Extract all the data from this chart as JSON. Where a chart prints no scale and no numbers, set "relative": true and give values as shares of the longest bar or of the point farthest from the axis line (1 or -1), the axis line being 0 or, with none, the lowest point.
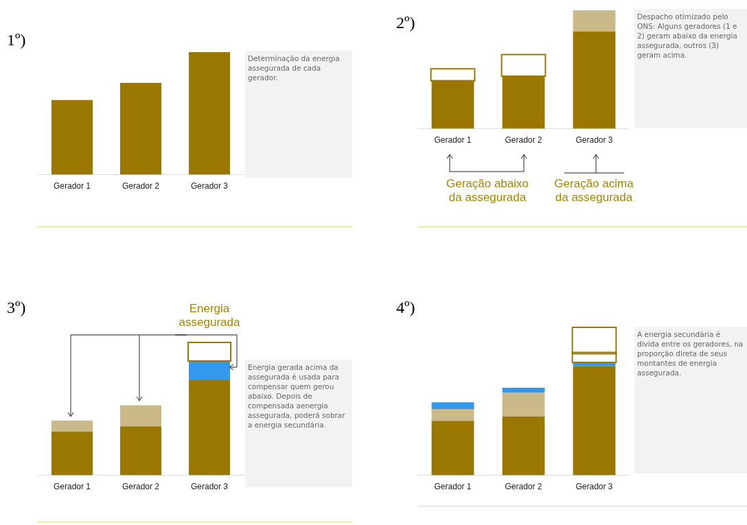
{
  "chart_data": [
    {
      "type": "bar",
      "title": "1º)",
      "categories": [
        "Gerador 1",
        "Gerador 2",
        "Gerador 3"
      ],
      "stacked": true,
      "relative": true,
      "grid": false,
      "series": [
        {
          "color": "#9a7800",
          "values": [
            0.61,
            0.75,
            1
          ]
        }
      ],
      "annotations": [
        "Determinação da energia assegurada de cada gerador."
      ]
    },
    {
      "type": "bar",
      "title": "2º)",
      "categories": [
        "Gerador 1",
        "Gerador 2",
        "Gerador 3"
      ],
      "stacked": true,
      "relative": true,
      "grid": false,
      "series": [
        {
          "color": "#9a7800",
          "values": [
            0.41,
            0.45,
            0.82
          ]
        },
        {
          "color": "#ffffff",
          "values": [
            0.09,
            0.17,
            null
          ]
        },
        {
          "color": "#ccb98a",
          "values": [
            null,
            null,
            0.18
          ]
        }
      ],
      "annotations": [
        "Despacho otimizado pelo ONS: Alguns geradores (1 e 2) geram abaixo da energia assegurada, outros (3) geram acima.",
        "Geração abaixo da assegurada",
        "Geração acima da assegurada"
      ]
    },
    {
      "type": "bar",
      "title": "3º)",
      "categories": [
        "Gerador 1",
        "Gerador 2",
        "Gerador 3"
      ],
      "stacked": true,
      "relative": true,
      "grid": false,
      "series": [
        {
          "color": "#9a7800",
          "values": [
            0.33,
            0.37,
            0.72
          ]
        },
        {
          "color": "#ccb98a",
          "values": [
            0.085,
            0.16,
            null
          ]
        },
        {
          "color": "#3399ee",
          "values": [
            null,
            null,
            0.15
          ]
        },
        {
          "color": "#ffffff",
          "values": [
            null,
            null,
            0.13
          ]
        }
      ],
      "annotations": [
        "Energia assegurada",
        "Energia gerada acima da assegurada é usada para compensar quem gerou abaixo. Depois de compensada aenergia assegurada, poderá sobrar a energia secundária."
      ]
    },
    {
      "type": "bar",
      "title": "4º)",
      "categories": [
        "Gerador 1",
        "Gerador 2",
        "Gerador 3"
      ],
      "stacked": true,
      "relative": true,
      "grid": false,
      "series": [
        {
          "color": "#9a7800",
          "values": [
            0.37,
            0.4,
            0.74
          ]
        },
        {
          "color": "#ccb98a",
          "values": [
            0.08,
            0.16,
            null
          ]
        },
        {
          "color": "#3399ee",
          "values": [
            0.045,
            0.035,
            0.03
          ]
        },
        {
          "color": "#ffffff",
          "values": [
            null,
            null,
            0.06
          ]
        },
        {
          "color": "#ffffff",
          "values": [
            null,
            null,
            0.17
          ]
        }
      ],
      "annotations": [
        "A energia secundária é divida entre os geradores, na proporção direta de seus montantes de energia assegurada."
      ]
    }
  ]
}
